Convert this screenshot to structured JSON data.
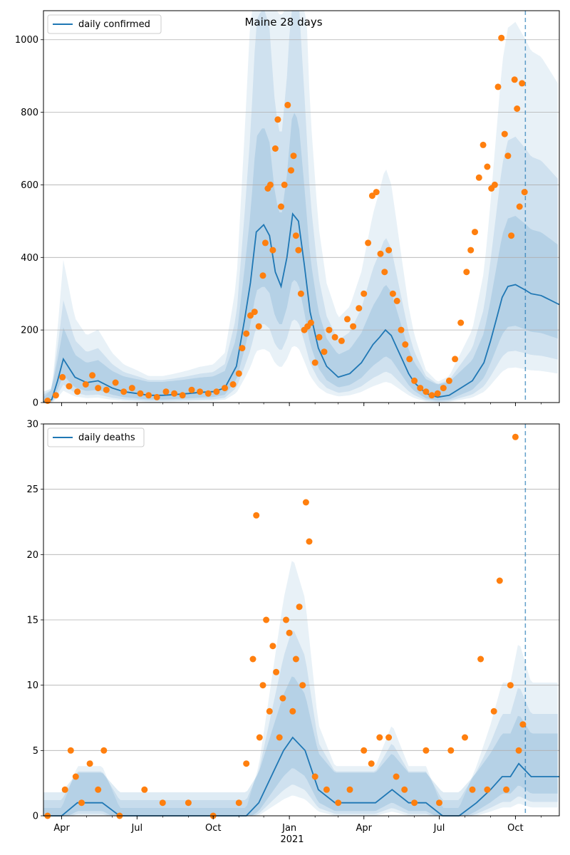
{
  "chart_data": [
    {
      "type": "line",
      "title": "Maine 28 days",
      "xlabel": "",
      "ylabel": "",
      "xlim": [
        "2020-03-10",
        "2021-11-23"
      ],
      "ylim": [
        0,
        1080
      ],
      "yticks": [
        0,
        200,
        400,
        600,
        800,
        1000
      ],
      "grid": "horizontal",
      "legend": {
        "placement": "top-left",
        "entries": [
          "daily confirmed"
        ]
      },
      "colors": {
        "line": "#1f77b4",
        "points": "#ff7f0e",
        "band": "#1f77b4"
      },
      "forecast_start": "2021-10-13",
      "series": [
        {
          "name": "daily confirmed",
          "kind": "line",
          "x": [
            "2020-03-10",
            "2020-03-20",
            "2020-03-27",
            "2020-04-03",
            "2020-04-17",
            "2020-05-01",
            "2020-05-15",
            "2020-06-01",
            "2020-06-15",
            "2020-07-01",
            "2020-07-15",
            "2020-08-01",
            "2020-08-15",
            "2020-09-01",
            "2020-09-15",
            "2020-10-01",
            "2020-10-15",
            "2020-10-29",
            "2020-11-08",
            "2020-11-15",
            "2020-11-22",
            "2020-12-01",
            "2020-12-08",
            "2020-12-15",
            "2020-12-22",
            "2020-12-29",
            "2021-01-05",
            "2021-01-12",
            "2021-01-19",
            "2021-01-26",
            "2021-02-05",
            "2021-02-15",
            "2021-03-01",
            "2021-03-15",
            "2021-03-29",
            "2021-04-12",
            "2021-04-20",
            "2021-04-27",
            "2021-05-04",
            "2021-05-11",
            "2021-05-18",
            "2021-05-25",
            "2021-06-01",
            "2021-06-15",
            "2021-06-29",
            "2021-07-13",
            "2021-07-27",
            "2021-08-10",
            "2021-08-24",
            "2021-09-01",
            "2021-09-08",
            "2021-09-15",
            "2021-09-22",
            "2021-10-01",
            "2021-10-13",
            "2021-10-20",
            "2021-11-01",
            "2021-11-10",
            "2021-11-23"
          ],
          "y": [
            2,
            8,
            60,
            120,
            70,
            55,
            60,
            40,
            30,
            25,
            20,
            20,
            22,
            25,
            28,
            30,
            40,
            100,
            230,
            330,
            470,
            490,
            460,
            360,
            320,
            400,
            520,
            500,
            380,
            250,
            150,
            100,
            70,
            80,
            110,
            160,
            180,
            200,
            185,
            150,
            115,
            80,
            55,
            25,
            15,
            20,
            40,
            60,
            110,
            170,
            230,
            290,
            320,
            325,
            310,
            300,
            295,
            285,
            270
          ]
        },
        {
          "name": "",
          "kind": "scatter",
          "x": [
            "2020-03-15",
            "2020-03-25",
            "2020-04-02",
            "2020-04-10",
            "2020-04-20",
            "2020-04-30",
            "2020-05-08",
            "2020-05-15",
            "2020-05-25",
            "2020-06-05",
            "2020-06-15",
            "2020-06-25",
            "2020-07-05",
            "2020-07-15",
            "2020-07-25",
            "2020-08-05",
            "2020-08-15",
            "2020-08-25",
            "2020-09-05",
            "2020-09-15",
            "2020-09-25",
            "2020-10-05",
            "2020-10-15",
            "2020-10-25",
            "2020-11-01",
            "2020-11-05",
            "2020-11-10",
            "2020-11-15",
            "2020-11-20",
            "2020-11-25",
            "2020-11-30",
            "2020-12-03",
            "2020-12-06",
            "2020-12-09",
            "2020-12-12",
            "2020-12-15",
            "2020-12-18",
            "2020-12-22",
            "2020-12-26",
            "2020-12-30",
            "2021-01-03",
            "2021-01-06",
            "2021-01-09",
            "2021-01-12",
            "2021-01-15",
            "2021-01-19",
            "2021-01-23",
            "2021-01-27",
            "2021-02-01",
            "2021-02-06",
            "2021-02-12",
            "2021-02-18",
            "2021-02-25",
            "2021-03-05",
            "2021-03-12",
            "2021-03-19",
            "2021-03-26",
            "2021-04-01",
            "2021-04-06",
            "2021-04-11",
            "2021-04-16",
            "2021-04-21",
            "2021-04-26",
            "2021-05-01",
            "2021-05-06",
            "2021-05-11",
            "2021-05-16",
            "2021-05-21",
            "2021-05-26",
            "2021-06-01",
            "2021-06-08",
            "2021-06-15",
            "2021-06-22",
            "2021-06-29",
            "2021-07-06",
            "2021-07-13",
            "2021-07-20",
            "2021-07-27",
            "2021-08-03",
            "2021-08-08",
            "2021-08-13",
            "2021-08-18",
            "2021-08-23",
            "2021-08-28",
            "2021-09-02",
            "2021-09-06",
            "2021-09-10",
            "2021-09-14",
            "2021-09-18",
            "2021-09-22",
            "2021-09-26",
            "2021-09-30",
            "2021-10-03",
            "2021-10-06",
            "2021-10-09",
            "2021-10-12"
          ],
          "y": [
            5,
            20,
            70,
            45,
            30,
            50,
            75,
            40,
            35,
            55,
            30,
            40,
            25,
            20,
            15,
            30,
            25,
            20,
            35,
            30,
            25,
            30,
            40,
            50,
            80,
            150,
            190,
            240,
            250,
            210,
            350,
            440,
            590,
            600,
            420,
            700,
            780,
            540,
            600,
            820,
            640,
            680,
            460,
            420,
            300,
            200,
            210,
            220,
            110,
            180,
            140,
            200,
            180,
            170,
            230,
            210,
            260,
            300,
            440,
            570,
            580,
            410,
            360,
            420,
            300,
            280,
            200,
            160,
            120,
            60,
            40,
            30,
            20,
            25,
            40,
            60,
            120,
            220,
            360,
            420,
            470,
            620,
            710,
            650,
            590,
            600,
            870,
            1005,
            740,
            680,
            460,
            890,
            810,
            540,
            880,
            580
          ]
        }
      ]
    },
    {
      "type": "line",
      "title": "",
      "xlabel": "",
      "ylabel": "",
      "xlim": [
        "2020-03-10",
        "2021-11-23"
      ],
      "ylim": [
        0,
        30
      ],
      "yticks": [
        0,
        5,
        10,
        15,
        20,
        25,
        30
      ],
      "xticks": [
        {
          "date": "2020-04-01",
          "label": "Apr"
        },
        {
          "date": "2020-07-01",
          "label": "Jul"
        },
        {
          "date": "2020-10-01",
          "label": "Oct"
        },
        {
          "date": "2021-01-01",
          "label": "Jan"
        },
        {
          "date": "2021-04-01",
          "label": "Apr"
        },
        {
          "date": "2021-07-01",
          "label": "Jul"
        },
        {
          "date": "2021-10-01",
          "label": "Oct"
        }
      ],
      "xyear": {
        "date": "2021-01-01",
        "label": "2021"
      },
      "grid": "horizontal",
      "legend": {
        "placement": "top-left",
        "entries": [
          "daily deaths"
        ]
      },
      "colors": {
        "line": "#1f77b4",
        "points": "#ff7f0e",
        "band": "#1f77b4"
      },
      "forecast_start": "2021-10-13",
      "series": [
        {
          "name": "daily deaths",
          "kind": "line",
          "x": [
            "2020-03-10",
            "2020-04-01",
            "2020-04-20",
            "2020-05-20",
            "2020-06-10",
            "2020-07-15",
            "2020-08-15",
            "2020-09-15",
            "2020-10-15",
            "2020-11-10",
            "2020-11-25",
            "2020-12-10",
            "2020-12-25",
            "2021-01-05",
            "2021-01-20",
            "2021-02-05",
            "2021-02-25",
            "2021-03-20",
            "2021-04-15",
            "2021-05-05",
            "2021-05-25",
            "2021-06-15",
            "2021-07-05",
            "2021-07-25",
            "2021-08-15",
            "2021-09-01",
            "2021-09-15",
            "2021-09-25",
            "2021-10-05",
            "2021-10-20",
            "2021-11-23"
          ],
          "y": [
            0,
            0,
            1,
            1,
            0,
            0,
            0,
            0,
            0,
            0,
            1,
            3,
            5,
            6,
            5,
            2,
            1,
            1,
            1,
            2,
            1,
            1,
            0,
            0,
            1,
            2,
            3,
            3,
            4,
            3,
            3
          ]
        },
        {
          "name": "",
          "kind": "scatter",
          "x": [
            "2020-03-15",
            "2020-04-05",
            "2020-04-12",
            "2020-04-18",
            "2020-04-25",
            "2020-05-05",
            "2020-05-15",
            "2020-05-22",
            "2020-06-10",
            "2020-07-10",
            "2020-08-01",
            "2020-09-01",
            "2020-10-01",
            "2020-11-01",
            "2020-11-10",
            "2020-11-18",
            "2020-11-22",
            "2020-11-26",
            "2020-11-30",
            "2020-12-04",
            "2020-12-08",
            "2020-12-12",
            "2020-12-16",
            "2020-12-20",
            "2020-12-24",
            "2020-12-28",
            "2021-01-01",
            "2021-01-05",
            "2021-01-09",
            "2021-01-13",
            "2021-01-17",
            "2021-01-21",
            "2021-01-25",
            "2021-02-01",
            "2021-02-15",
            "2021-03-01",
            "2021-03-15",
            "2021-04-01",
            "2021-04-10",
            "2021-04-20",
            "2021-05-01",
            "2021-05-10",
            "2021-05-20",
            "2021-06-01",
            "2021-06-15",
            "2021-07-01",
            "2021-07-15",
            "2021-08-01",
            "2021-08-10",
            "2021-08-20",
            "2021-08-28",
            "2021-09-05",
            "2021-09-12",
            "2021-09-20",
            "2021-09-25",
            "2021-10-01",
            "2021-10-05",
            "2021-10-10"
          ],
          "y": [
            0,
            2,
            5,
            3,
            1,
            4,
            2,
            5,
            0,
            2,
            1,
            1,
            0,
            1,
            4,
            12,
            23,
            6,
            10,
            15,
            8,
            13,
            11,
            6,
            9,
            15,
            14,
            8,
            12,
            16,
            10,
            24,
            21,
            3,
            2,
            1,
            2,
            5,
            4,
            6,
            6,
            3,
            2,
            1,
            5,
            1,
            5,
            6,
            2,
            12,
            2,
            8,
            18,
            2,
            10,
            29,
            5,
            7
          ]
        }
      ]
    }
  ]
}
